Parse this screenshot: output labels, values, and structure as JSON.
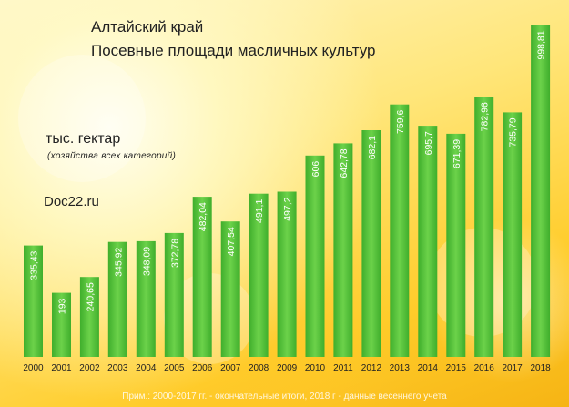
{
  "header": {
    "title_line1": "Алтайский край",
    "title_line2": "Посевные площади масличных культур",
    "unit": "тыс. гектар",
    "unit_sub": "(хозяйства всех категорий)",
    "source": "Doc22.ru"
  },
  "footer": {
    "note": "Прим.: 2000-2017 гг. - окончательные итоги, 2018 г - данные весеннего учета"
  },
  "colors": {
    "bar_light": "#6cd24a",
    "bar_dark": "#3fae2c",
    "value_text": "#ffffff"
  },
  "chart_data": {
    "type": "bar",
    "title": "Посевные площади масличных культур",
    "ylabel": "тыс. гектар",
    "ylim": [
      0,
      1000
    ],
    "grid": false,
    "categories": [
      "2000",
      "2001",
      "2002",
      "2003",
      "2004",
      "2005",
      "2006",
      "2007",
      "2008",
      "2009",
      "2010",
      "2011",
      "2012",
      "2013",
      "2014",
      "2015",
      "2016",
      "2017",
      "2018"
    ],
    "values": [
      335.43,
      193,
      240.65,
      345.92,
      348.09,
      372.78,
      482.04,
      407.54,
      491.1,
      497.2,
      606,
      642.78,
      682.1,
      759.6,
      695.7,
      671.39,
      782.96,
      735.79,
      998.81
    ],
    "value_labels": [
      "335,43",
      "193",
      "240,65",
      "345,92",
      "348,09",
      "372,78",
      "482,04",
      "407,54",
      "491,1",
      "497,2",
      "606",
      "642,78",
      "682,1",
      "759,6",
      "695,7",
      "671,39",
      "782,96",
      "735,79",
      "998,81"
    ]
  }
}
